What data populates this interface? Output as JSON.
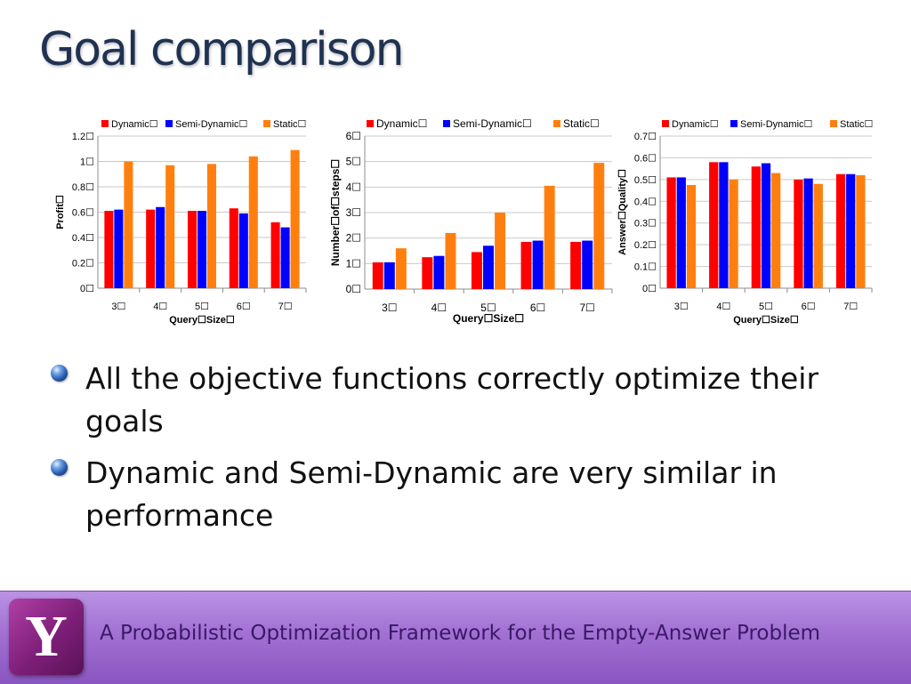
{
  "slide": {
    "title": "Goal comparison",
    "bullets": [
      "All the objective functions correctly optimize their goals",
      "Dynamic and Semi-Dynamic are very similar in performance"
    ],
    "footer_text": "A Probabilistic Optimization Framework for the Empty-Answer Problem",
    "logo_letter": "Y"
  },
  "chart_data": [
    {
      "type": "bar",
      "categories": [
        "3☐",
        "4☐",
        "5☐",
        "6☐",
        "7☐"
      ],
      "series": [
        {
          "name": "Dynamic☐",
          "color": "#ff0000",
          "values": [
            0.61,
            0.62,
            0.61,
            0.63,
            0.52
          ]
        },
        {
          "name": "Semi-Dynamic☐",
          "color": "#0000ff",
          "values": [
            0.62,
            0.64,
            0.61,
            0.59,
            0.48
          ]
        },
        {
          "name": "Static☐",
          "color": "#ff7f0e",
          "values": [
            1.0,
            0.97,
            0.98,
            1.04,
            1.09
          ]
        }
      ],
      "ylim": [
        0,
        1.2
      ],
      "yticks": [
        0,
        0.2,
        0.4,
        0.6,
        0.8,
        1.0,
        1.2
      ],
      "ytick_labels": [
        "0☐",
        "0.2☐",
        "0.4☐",
        "0.6☐",
        "0.8☐",
        "1☐",
        "1.2☐"
      ],
      "xlabel": "Query☐Size☐",
      "ylabel": "Profit☐",
      "title": "",
      "legend": "top",
      "grid": true
    },
    {
      "type": "bar",
      "categories": [
        "3☐",
        "4☐",
        "5☐",
        "6☐",
        "7☐"
      ],
      "series": [
        {
          "name": "Dynamic☐",
          "color": "#ff0000",
          "values": [
            1.05,
            1.25,
            1.45,
            1.85,
            1.85
          ]
        },
        {
          "name": "Semi-Dynamic☐",
          "color": "#0000ff",
          "values": [
            1.05,
            1.3,
            1.7,
            1.9,
            1.9
          ]
        },
        {
          "name": "Static☐",
          "color": "#ff7f0e",
          "values": [
            1.6,
            2.2,
            3.0,
            4.05,
            4.95
          ]
        }
      ],
      "ylim": [
        0,
        6
      ],
      "yticks": [
        0,
        1,
        2,
        3,
        4,
        5,
        6
      ],
      "ytick_labels": [
        "0☐",
        "1☐",
        "2☐",
        "3☐",
        "4☐",
        "5☐",
        "6☐"
      ],
      "xlabel": "Query☐Size☐",
      "ylabel": "Number☐of☐steps☐",
      "title": "",
      "legend": "top",
      "grid": true
    },
    {
      "type": "bar",
      "categories": [
        "3☐",
        "4☐",
        "5☐",
        "6☐",
        "7☐"
      ],
      "series": [
        {
          "name": "Dynamic☐",
          "color": "#ff0000",
          "values": [
            0.51,
            0.58,
            0.56,
            0.5,
            0.525
          ]
        },
        {
          "name": "Semi-Dynamic☐",
          "color": "#0000ff",
          "values": [
            0.51,
            0.58,
            0.575,
            0.505,
            0.525
          ]
        },
        {
          "name": "Static☐",
          "color": "#ff7f0e",
          "values": [
            0.475,
            0.5,
            0.53,
            0.48,
            0.52
          ]
        }
      ],
      "ylim": [
        0,
        0.7
      ],
      "yticks": [
        0,
        0.1,
        0.2,
        0.3,
        0.4,
        0.5,
        0.6,
        0.7
      ],
      "ytick_labels": [
        "0☐",
        "0.1☐",
        "0.2☐",
        "0.3☐",
        "0.4☐",
        "0.5☐",
        "0.6☐",
        "0.7☐"
      ],
      "xlabel": "Query☐Size☐",
      "ylabel": "Answer☐Quality☐",
      "title": "",
      "legend": "top",
      "grid": true
    }
  ]
}
